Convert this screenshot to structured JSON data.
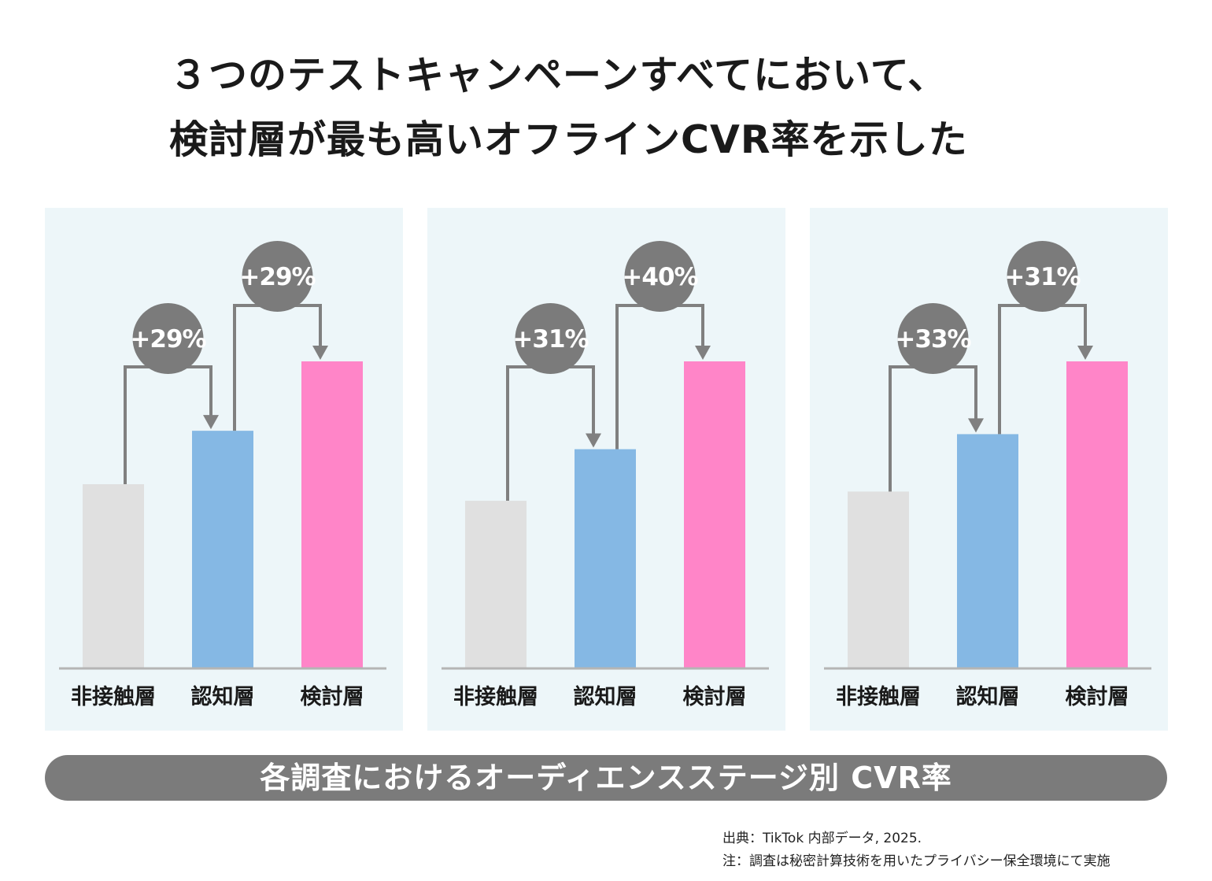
{
  "title": {
    "line1": "３つのテストキャンペーンすべてにおいて、",
    "line2": "検討層が最も高いオフラインCVR率を示した"
  },
  "banner": "各調査におけるオーディエンスステージ別 CVR率",
  "footnotes": {
    "source": "出典：TikTok 内部データ, 2025.",
    "note": "注：調査は秘密計算技術を用いたプライバシー保全環境にて実施"
  },
  "colors": {
    "panel_bg": "#edf6f9",
    "bar_non_contact": "#e0e0e0",
    "bar_awareness": "#85b8e4",
    "bar_consideration": "#ff85c8",
    "bubble": "#7b7b7b",
    "arrow": "#808080"
  },
  "chart_data": [
    {
      "type": "bar",
      "categories": [
        "非接触層",
        "認知層",
        "検討層"
      ],
      "values": [
        60,
        77.4,
        100
      ],
      "annotations": [
        {
          "from": "非接触層",
          "to": "認知層",
          "label": "+29%"
        },
        {
          "from": "認知層",
          "to": "検討層",
          "label": "+29%"
        }
      ]
    },
    {
      "type": "bar",
      "categories": [
        "非接触層",
        "認知層",
        "検討層"
      ],
      "values": [
        54.6,
        71.4,
        100
      ],
      "annotations": [
        {
          "from": "非接触層",
          "to": "認知層",
          "label": "+31%"
        },
        {
          "from": "認知層",
          "to": "検討層",
          "label": "+40%"
        }
      ]
    },
    {
      "type": "bar",
      "categories": [
        "非接触層",
        "認知層",
        "検討層"
      ],
      "values": [
        57.6,
        76.3,
        100
      ],
      "annotations": [
        {
          "from": "非接触層",
          "to": "認知層",
          "label": "+33%"
        },
        {
          "from": "認知層",
          "to": "検討層",
          "label": "+31%"
        }
      ]
    }
  ]
}
